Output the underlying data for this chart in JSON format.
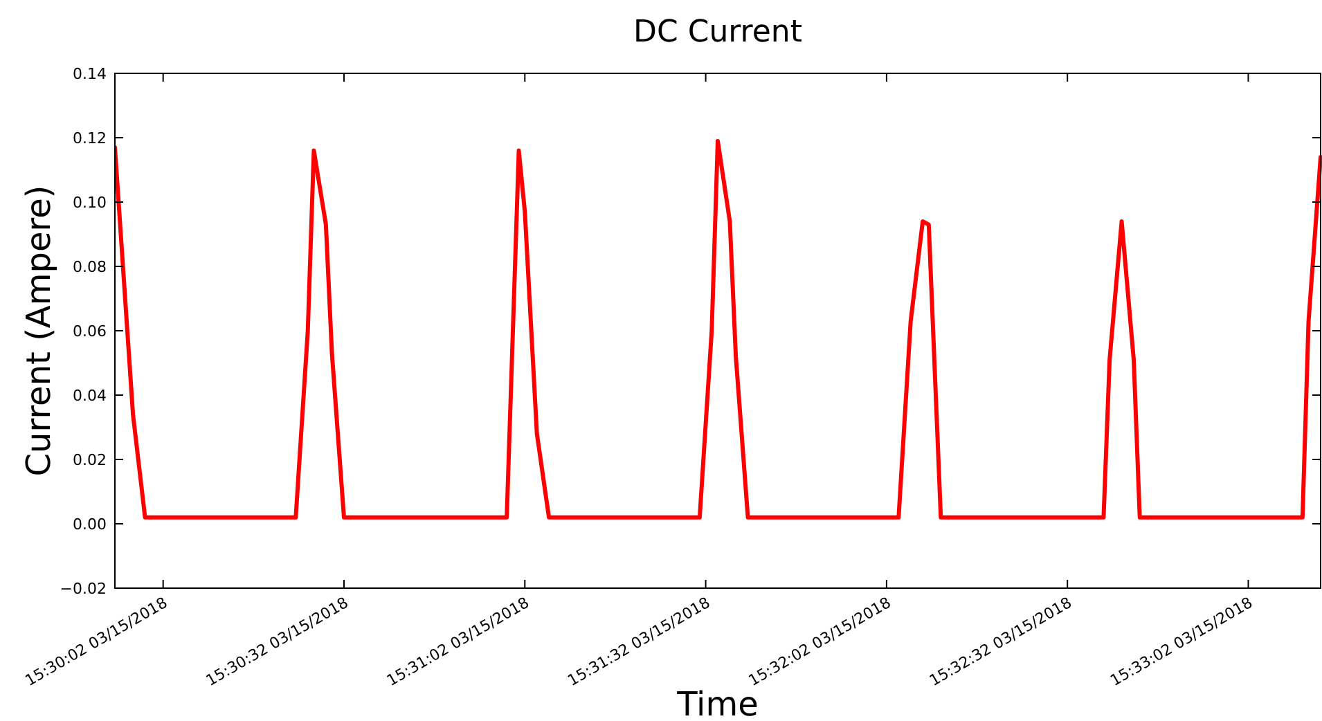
{
  "chart_data": {
    "type": "line",
    "title": "DC Current",
    "xlabel": "Time",
    "ylabel": "Current (Ampere)",
    "x": [
      "2018-03-15T15:29:54",
      "2018-03-15T15:29:57",
      "2018-03-15T15:29:59",
      "2018-03-15T15:30:24",
      "2018-03-15T15:30:26",
      "2018-03-15T15:30:27",
      "2018-03-15T15:30:29",
      "2018-03-15T15:30:30",
      "2018-03-15T15:30:32",
      "2018-03-15T15:30:59",
      "2018-03-15T15:31:01",
      "2018-03-15T15:31:02",
      "2018-03-15T15:31:04",
      "2018-03-15T15:31:06",
      "2018-03-15T15:31:31",
      "2018-03-15T15:31:33",
      "2018-03-15T15:31:34",
      "2018-03-15T15:31:36",
      "2018-03-15T15:31:37",
      "2018-03-15T15:31:39",
      "2018-03-15T15:32:04",
      "2018-03-15T15:32:06",
      "2018-03-15T15:32:08",
      "2018-03-15T15:32:09",
      "2018-03-15T15:32:11",
      "2018-03-15T15:32:38",
      "2018-03-15T15:32:39",
      "2018-03-15T15:32:41",
      "2018-03-15T15:32:43",
      "2018-03-15T15:32:44",
      "2018-03-15T15:33:11",
      "2018-03-15T15:33:12",
      "2018-03-15T15:33:14"
    ],
    "series": [
      {
        "color": "#ff0000",
        "values": [
          0.117,
          0.034,
          0.002,
          0.002,
          0.06,
          0.116,
          0.093,
          0.053,
          0.002,
          0.002,
          0.116,
          0.097,
          0.028,
          0.002,
          0.002,
          0.06,
          0.119,
          0.094,
          0.052,
          0.002,
          0.002,
          0.063,
          0.094,
          0.093,
          0.002,
          0.002,
          0.051,
          0.094,
          0.051,
          0.002,
          0.002,
          0.063,
          0.114
        ]
      }
    ],
    "xlim": [
      "2018-03-15T15:29:54",
      "2018-03-15T15:33:14"
    ],
    "xticks": [
      {
        "value": "2018-03-15T15:30:02",
        "label": "15:30:02 03/15/2018"
      },
      {
        "value": "2018-03-15T15:30:32",
        "label": "15:30:32 03/15/2018"
      },
      {
        "value": "2018-03-15T15:31:02",
        "label": "15:31:02 03/15/2018"
      },
      {
        "value": "2018-03-15T15:31:32",
        "label": "15:31:32 03/15/2018"
      },
      {
        "value": "2018-03-15T15:32:02",
        "label": "15:32:02 03/15/2018"
      },
      {
        "value": "2018-03-15T15:32:32",
        "label": "15:32:32 03/15/2018"
      },
      {
        "value": "2018-03-15T15:33:02",
        "label": "15:33:02 03/15/2018"
      }
    ],
    "ylim": [
      -0.02,
      0.14
    ],
    "yticks": [
      {
        "value": -0.02,
        "label": "−0.02"
      },
      {
        "value": 0,
        "label": "0.00"
      },
      0.02,
      0.04,
      0.06,
      0.08,
      {
        "value": 0.1,
        "label": "0.10"
      },
      0.12,
      0.14
    ],
    "grid": false,
    "marker": "none",
    "line_style": "solid"
  }
}
